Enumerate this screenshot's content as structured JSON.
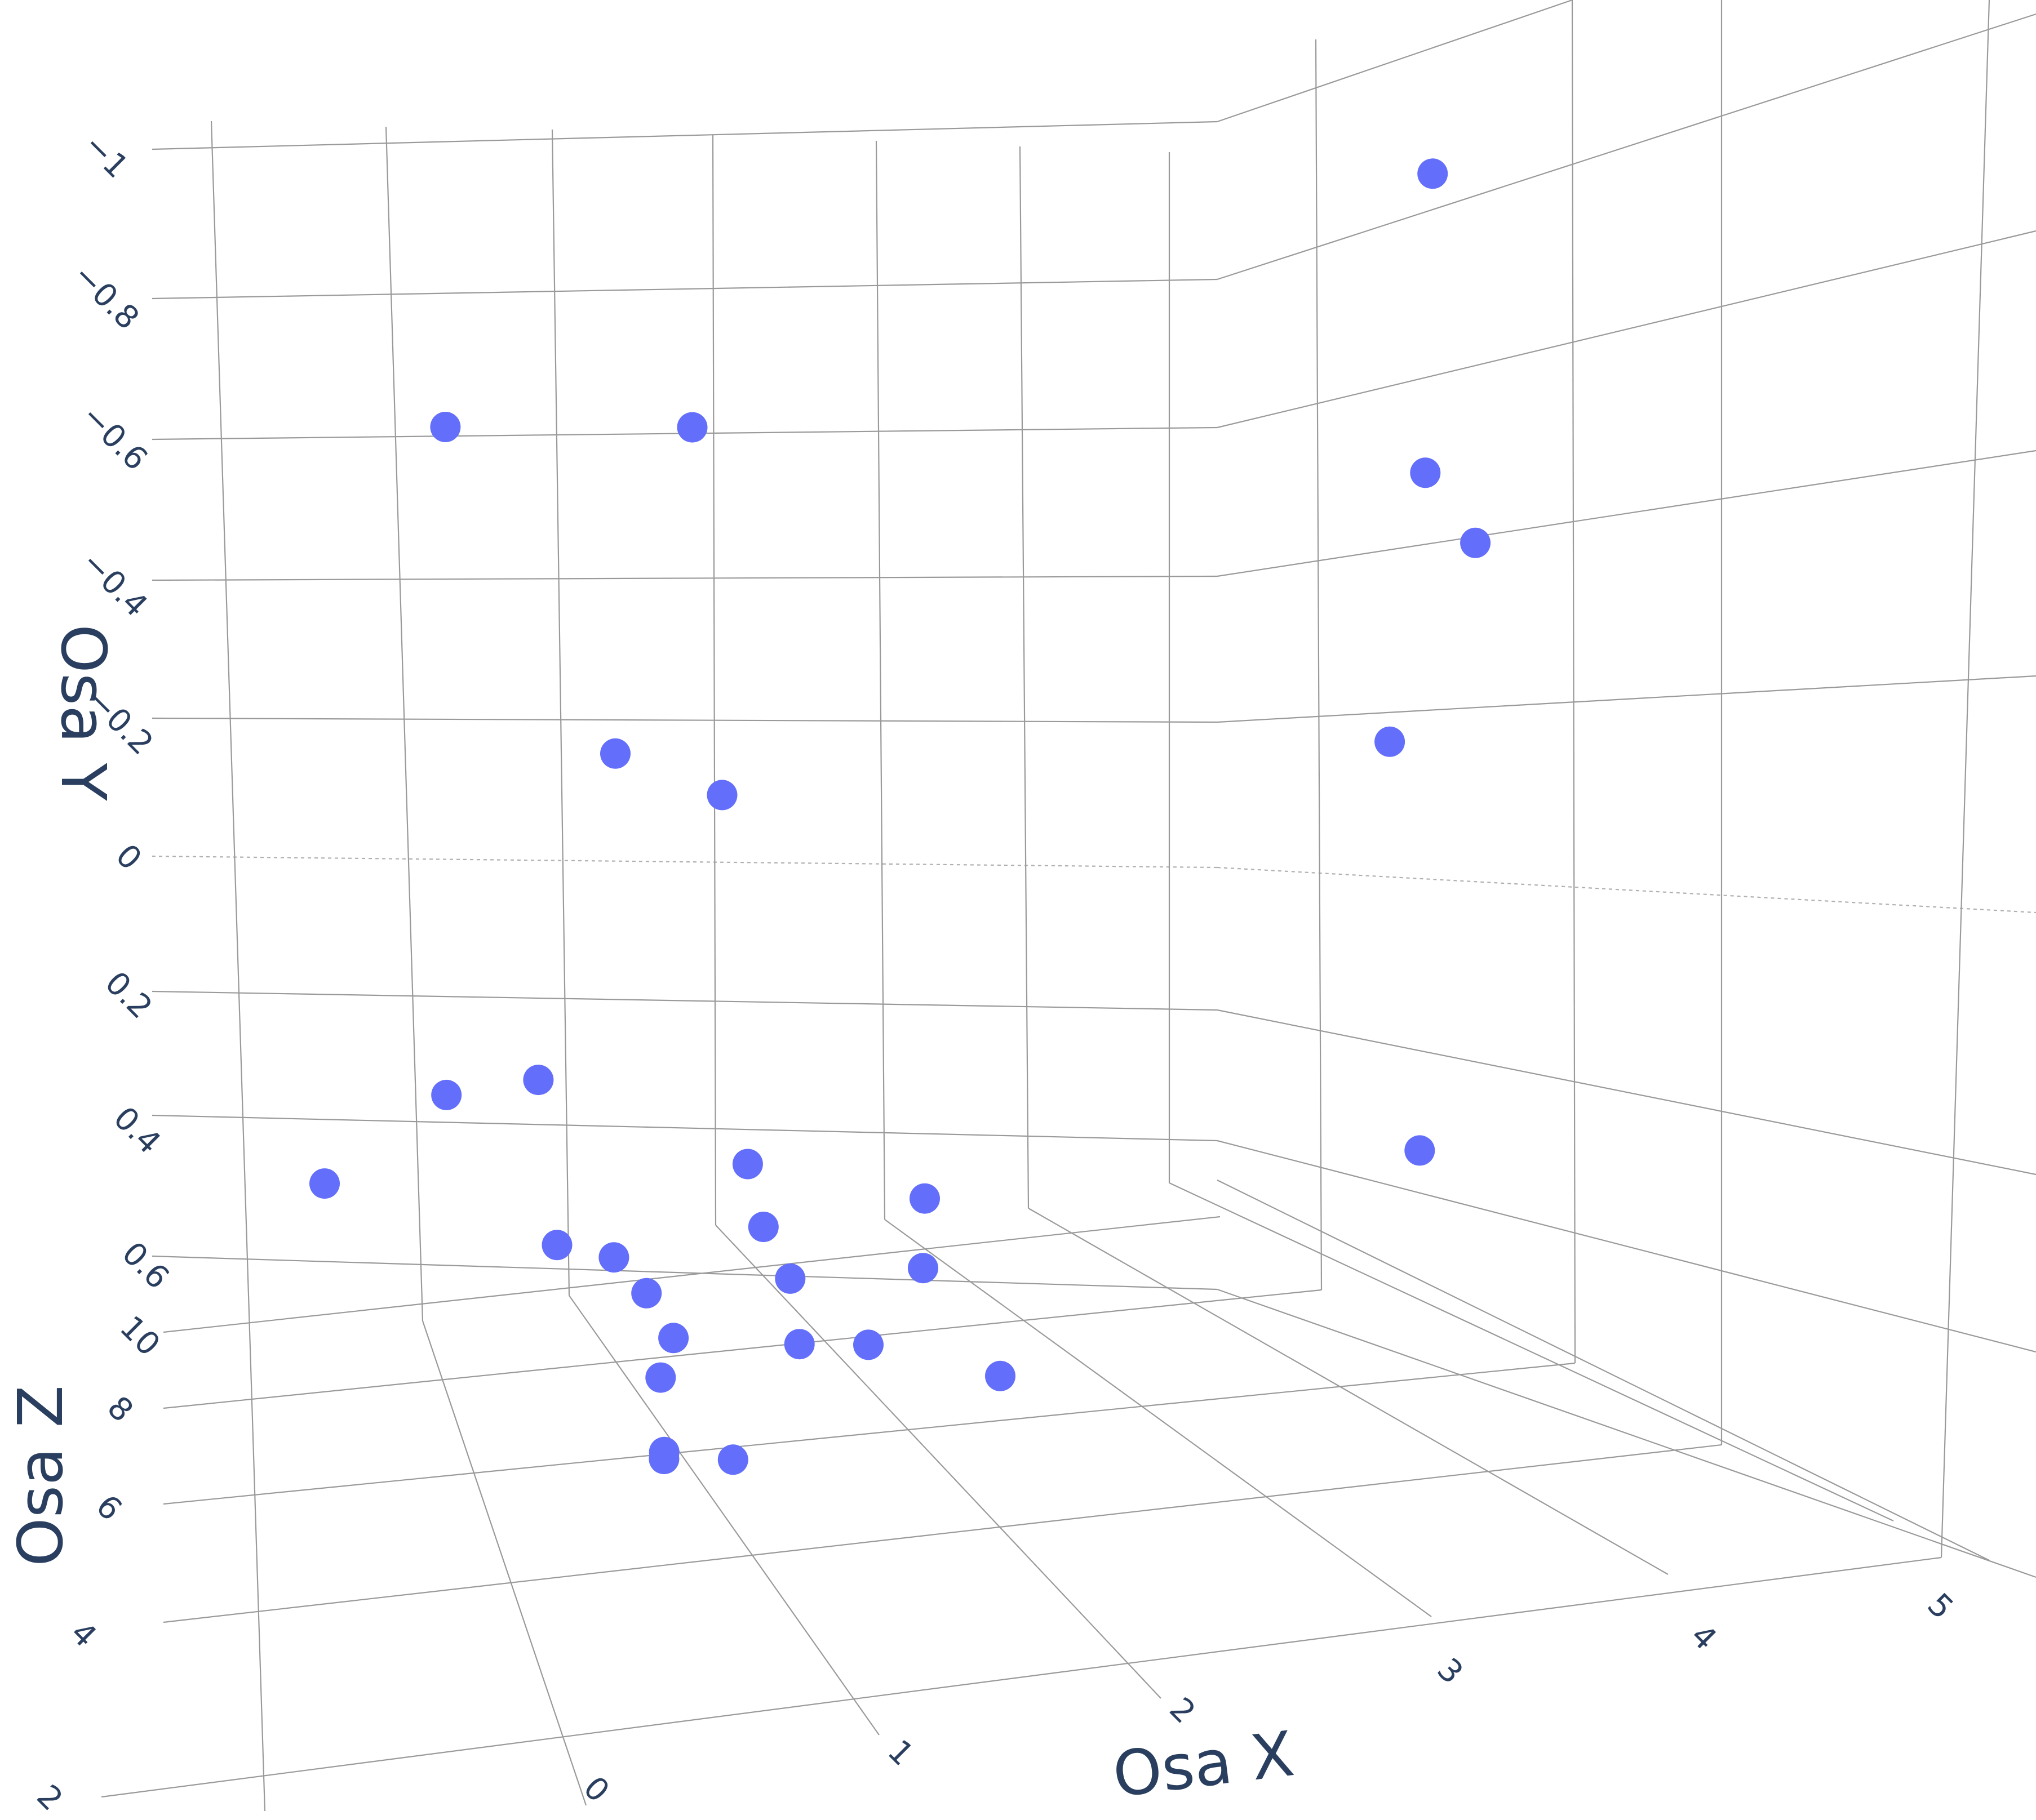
{
  "chart_data": {
    "type": "scatter3d",
    "title": "",
    "marker_color": "#636efa",
    "axes": {
      "x": {
        "title": "Osa X",
        "ticks": [
          "0",
          "1",
          "2",
          "3",
          "4",
          "5"
        ]
      },
      "y": {
        "title": "Osa Y",
        "ticks": [
          "−1",
          "−0.8",
          "−0.6",
          "−0.4",
          "−0.2",
          "0",
          "0.2",
          "0.4",
          "0.6"
        ]
      },
      "z": {
        "title": "Osa Z",
        "ticks": [
          "2",
          "4",
          "6",
          "8",
          "10"
        ]
      }
    },
    "points": [
      {
        "x": -0.5,
        "y": -0.55,
        "z": 7.5
      },
      {
        "x": 0.9,
        "y": -0.56,
        "z": 7.0
      },
      {
        "x": 5.0,
        "y": -0.97,
        "z": 4.5
      },
      {
        "x": 5.0,
        "y": -0.54,
        "z": 4.5
      },
      {
        "x": 5.3,
        "y": -0.44,
        "z": 4.5
      },
      {
        "x": 0.5,
        "y": -0.09,
        "z": 7.0
      },
      {
        "x": 1.0,
        "y": -0.06,
        "z": 5.0
      },
      {
        "x": 4.8,
        "y": -0.16,
        "z": 4.0
      },
      {
        "x": -0.4,
        "y": 0.41,
        "z": 7.5
      },
      {
        "x": 0.1,
        "y": 0.38,
        "z": 7.0
      },
      {
        "x": 1.2,
        "y": 0.47,
        "z": 5.0
      },
      {
        "x": 2.2,
        "y": 0.51,
        "z": 4.5
      },
      {
        "x": 5.0,
        "y": 0.42,
        "z": 3.5
      },
      {
        "x": -1.0,
        "y": 0.56,
        "z": 9.0
      },
      {
        "x": 0.2,
        "y": 0.61,
        "z": 6.5
      },
      {
        "x": 0.5,
        "y": 0.62,
        "z": 6.0
      },
      {
        "x": 1.3,
        "y": 0.56,
        "z": 5.0
      },
      {
        "x": 1.4,
        "y": 0.62,
        "z": 4.0
      },
      {
        "x": 2.2,
        "y": 0.61,
        "z": 4.5
      },
      {
        "x": 0.6,
        "y": 0.65,
        "z": 4.5
      },
      {
        "x": 0.7,
        "y": 0.7,
        "z": 3.5
      },
      {
        "x": 1.4,
        "y": 0.7,
        "z": 3.0
      },
      {
        "x": 1.8,
        "y": 0.7,
        "z": 3.0
      },
      {
        "x": 2.6,
        "y": 0.75,
        "z": 3.5
      },
      {
        "x": 0.6,
        "y": 0.75,
        "z": 3.0
      },
      {
        "x": 0.6,
        "y": 0.85,
        "z": 2.5
      },
      {
        "x": 0.6,
        "y": 0.86,
        "z": 2.5
      },
      {
        "x": 1.0,
        "y": 0.86,
        "z": 2.5
      }
    ]
  }
}
